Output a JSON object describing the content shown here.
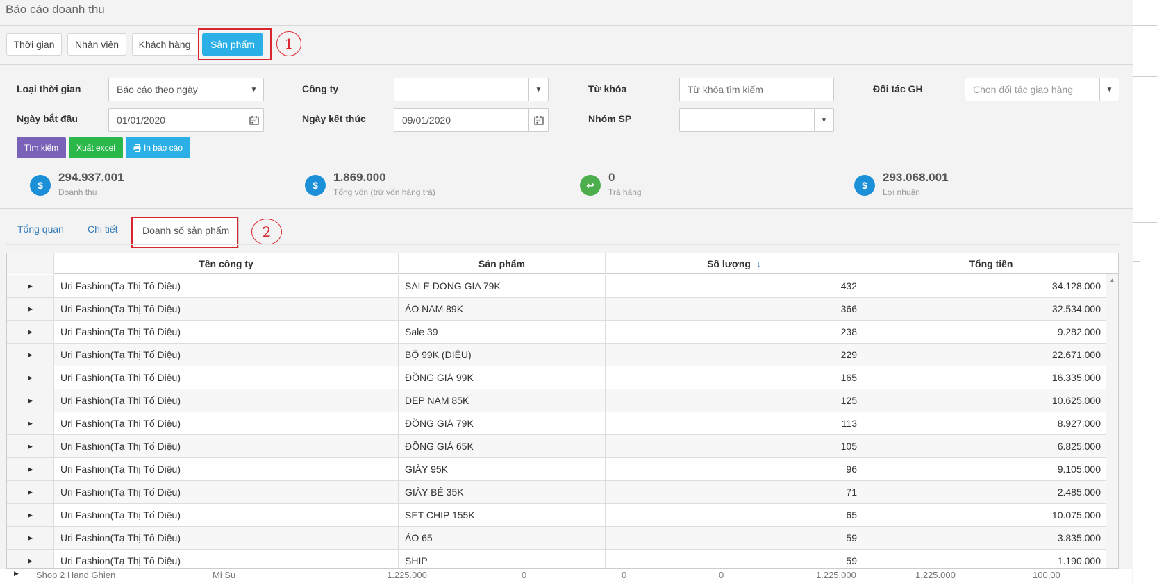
{
  "page": {
    "title": "Báo cáo doanh thu"
  },
  "top_tabs": [
    {
      "label": "Thời gian",
      "active": false
    },
    {
      "label": "Nhân viên",
      "active": false
    },
    {
      "label": "Khách hàng",
      "active": false
    },
    {
      "label": "Sản phẩm",
      "active": true
    }
  ],
  "annotations": {
    "one": "1",
    "two": "2",
    "color": "#d9262e"
  },
  "filters": {
    "time_type": {
      "label": "Loại thời gian",
      "value": "Báo cáo theo ngày"
    },
    "company": {
      "label": "Công ty",
      "value": ""
    },
    "keyword": {
      "label": "Từ khóa",
      "placeholder": "Từ khóa tìm kiếm"
    },
    "partner": {
      "label": "Đối tác GH",
      "placeholder": "Chọn đối tác giao hàng"
    },
    "start_date": {
      "label": "Ngày bắt đầu",
      "value": "01/01/2020"
    },
    "end_date": {
      "label": "Ngày kết thúc",
      "value": "09/01/2020"
    },
    "product_group": {
      "label": "Nhóm SP",
      "value": ""
    }
  },
  "buttons": {
    "search": {
      "label": "Tìm kiếm",
      "color": "#7a62b8"
    },
    "excel": {
      "label": "Xuất excel",
      "color": "#2ab84a"
    },
    "print": {
      "label": "In báo cáo",
      "color": "#2ab0e6"
    }
  },
  "stats": [
    {
      "value": "294.937.001",
      "label": "Doanh thu",
      "icon": "dollar-icon",
      "color": "#1c8fd9",
      "glyph": "$"
    },
    {
      "value": "1.869.000",
      "label": "Tổng vốn (trừ vốn hàng trả)",
      "icon": "dollar-icon",
      "color": "#1c8fd9",
      "glyph": "$"
    },
    {
      "value": "0",
      "label": "Trả hàng",
      "icon": "reply-icon",
      "color": "#4cae4c",
      "glyph": "↩"
    },
    {
      "value": "293.068.001",
      "label": "Lợi nhuận",
      "icon": "dollar-icon",
      "color": "#1c8fd9",
      "glyph": "$"
    }
  ],
  "sub_tabs": [
    {
      "label": "Tổng quan"
    },
    {
      "label": "Chi tiết"
    },
    {
      "label": "Doanh số sản phẩm"
    }
  ],
  "grid": {
    "columns": [
      "Tên công ty",
      "Sản phẩm",
      "Số lượng",
      "Tổng tiền"
    ],
    "sort_icon": "↓",
    "rows": [
      {
        "company": "Uri Fashion(Tạ Thị Tố Diệu)",
        "product": "SALE DONG GIA 79K",
        "qty": "432",
        "total": "34.128.000"
      },
      {
        "company": "Uri Fashion(Tạ Thị Tố Diệu)",
        "product": "ÁO NAM 89K",
        "qty": "366",
        "total": "32.534.000"
      },
      {
        "company": "Uri Fashion(Tạ Thị Tố Diệu)",
        "product": "Sale 39",
        "qty": "238",
        "total": "9.282.000"
      },
      {
        "company": "Uri Fashion(Tạ Thị Tố Diệu)",
        "product": "BỘ 99K (DIỆU)",
        "qty": "229",
        "total": "22.671.000"
      },
      {
        "company": "Uri Fashion(Tạ Thị Tố Diệu)",
        "product": "ĐỒNG GIÁ 99K",
        "qty": "165",
        "total": "16.335.000"
      },
      {
        "company": "Uri Fashion(Tạ Thị Tố Diệu)",
        "product": "DÉP NAM 85K",
        "qty": "125",
        "total": "10.625.000"
      },
      {
        "company": "Uri Fashion(Tạ Thị Tố Diệu)",
        "product": "ĐỒNG GIÁ 79K",
        "qty": "113",
        "total": "8.927.000"
      },
      {
        "company": "Uri Fashion(Tạ Thị Tố Diệu)",
        "product": "ĐỒNG GIÁ 65K",
        "qty": "105",
        "total": "6.825.000"
      },
      {
        "company": "Uri Fashion(Tạ Thị Tố Diệu)",
        "product": "GIÀY 95K",
        "qty": "96",
        "total": "9.105.000"
      },
      {
        "company": "Uri Fashion(Tạ Thị Tố Diệu)",
        "product": "GIÀY BÉ 35K",
        "qty": "71",
        "total": "2.485.000"
      },
      {
        "company": "Uri Fashion(Tạ Thị Tố Diệu)",
        "product": "SET CHIP 155K",
        "qty": "65",
        "total": "10.075.000"
      },
      {
        "company": "Uri Fashion(Tạ Thị Tố Diệu)",
        "product": "ÁO 65",
        "qty": "59",
        "total": "3.835.000"
      },
      {
        "company": "Uri Fashion(Tạ Thị Tố Diệu)",
        "product": "SHIP",
        "qty": "59",
        "total": "1.190.000"
      }
    ]
  },
  "underlying_row": {
    "cells": [
      "Shop 2 Hand Ghien",
      "Mi Su",
      "1.225.000",
      "0",
      "0",
      "0",
      "1.225.000",
      "1.225.000",
      "100,00"
    ]
  }
}
